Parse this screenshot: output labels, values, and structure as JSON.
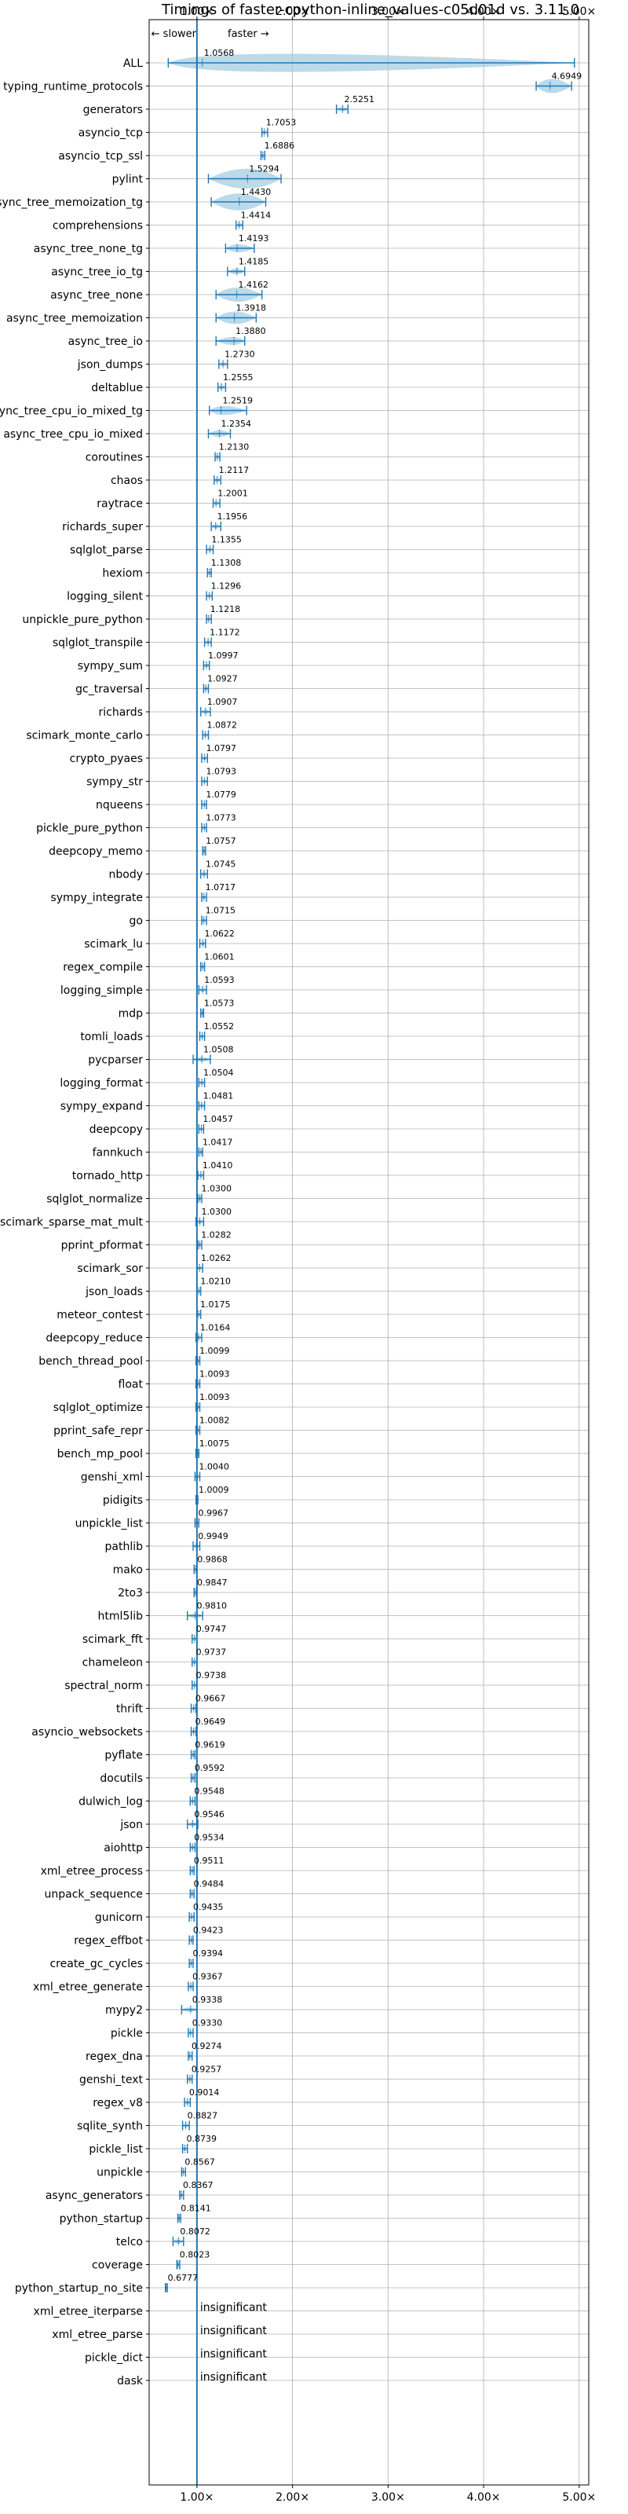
{
  "chart_data": {
    "type": "violin",
    "title": "Timings of faster-cpython-inline_values-c05d01d vs. 3.11.0",
    "direction_slower": "← slower",
    "direction_faster": "faster →",
    "xlim": [
      0.5,
      5.1
    ],
    "x_ticks": [
      1,
      2,
      3,
      4,
      5
    ],
    "x_tick_labels": [
      "1.00×",
      "2.00×",
      "3.00×",
      "4.00×",
      "5.00×"
    ],
    "reference_line": 1.0,
    "grid": true,
    "accent_color": "#1f77b4",
    "violin_color": "#9ecae1",
    "benchmarks": [
      {
        "name": "ALL",
        "value": 1.0568,
        "label": "1.0568",
        "min": 0.7,
        "max": 4.95,
        "w": 0.32
      },
      {
        "name": "typing_runtime_protocols",
        "value": 4.6949,
        "label": "4.6949",
        "min": 4.55,
        "max": 4.92,
        "w": 0.25
      },
      {
        "name": "generators",
        "value": 2.5251,
        "label": "2.5251",
        "min": 2.46,
        "max": 2.58,
        "w": 0.07
      },
      {
        "name": "asyncio_tcp",
        "value": 1.7053,
        "label": "1.7053",
        "min": 1.68,
        "max": 1.74,
        "w": 0.05
      },
      {
        "name": "asyncio_tcp_ssl",
        "value": 1.6886,
        "label": "1.6886",
        "min": 1.67,
        "max": 1.71,
        "w": 0.03
      },
      {
        "name": "pylint",
        "value": 1.5294,
        "label": "1.5294",
        "min": 1.12,
        "max": 1.88,
        "w": 0.35
      },
      {
        "name": "async_tree_memoization_tg",
        "value": 1.443,
        "label": "1.4430",
        "min": 1.15,
        "max": 1.72,
        "w": 0.3
      },
      {
        "name": "comprehensions",
        "value": 1.4414,
        "label": "1.4414",
        "min": 1.41,
        "max": 1.48,
        "w": 0.04
      },
      {
        "name": "async_tree_none_tg",
        "value": 1.4193,
        "label": "1.4193",
        "min": 1.3,
        "max": 1.6,
        "w": 0.14
      },
      {
        "name": "async_tree_io_tg",
        "value": 1.4185,
        "label": "1.4185",
        "min": 1.32,
        "max": 1.5,
        "w": 0.1
      },
      {
        "name": "async_tree_none",
        "value": 1.4162,
        "label": "1.4162",
        "min": 1.2,
        "max": 1.68,
        "w": 0.25
      },
      {
        "name": "async_tree_memoization",
        "value": 1.3918,
        "label": "1.3918",
        "min": 1.2,
        "max": 1.62,
        "w": 0.22
      },
      {
        "name": "async_tree_io",
        "value": 1.388,
        "label": "1.3880",
        "min": 1.2,
        "max": 1.5,
        "w": 0.14
      },
      {
        "name": "json_dumps",
        "value": 1.273,
        "label": "1.2730",
        "min": 1.23,
        "max": 1.32,
        "w": 0.05
      },
      {
        "name": "deltablue",
        "value": 1.2555,
        "label": "1.2555",
        "min": 1.22,
        "max": 1.3,
        "w": 0.05
      },
      {
        "name": "async_tree_cpu_io_mixed_tg",
        "value": 1.2519,
        "label": "1.2519",
        "min": 1.13,
        "max": 1.52,
        "w": 0.16
      },
      {
        "name": "async_tree_cpu_io_mixed",
        "value": 1.2354,
        "label": "1.2354",
        "min": 1.12,
        "max": 1.35,
        "w": 0.12
      },
      {
        "name": "coroutines",
        "value": 1.213,
        "label": "1.2130",
        "min": 1.19,
        "max": 1.24,
        "w": 0.04
      },
      {
        "name": "chaos",
        "value": 1.2117,
        "label": "1.2117",
        "min": 1.18,
        "max": 1.25,
        "w": 0.05
      },
      {
        "name": "raytrace",
        "value": 1.2001,
        "label": "1.2001",
        "min": 1.17,
        "max": 1.24,
        "w": 0.05
      },
      {
        "name": "richards_super",
        "value": 1.1956,
        "label": "1.1956",
        "min": 1.15,
        "max": 1.25,
        "w": 0.06
      },
      {
        "name": "sqlglot_parse",
        "value": 1.1355,
        "label": "1.1355",
        "min": 1.1,
        "max": 1.17,
        "w": 0.05
      },
      {
        "name": "hexiom",
        "value": 1.1308,
        "label": "1.1308",
        "min": 1.11,
        "max": 1.15,
        "w": 0.04
      },
      {
        "name": "logging_silent",
        "value": 1.1296,
        "label": "1.1296",
        "min": 1.1,
        "max": 1.16,
        "w": 0.04
      },
      {
        "name": "unpickle_pure_python",
        "value": 1.1218,
        "label": "1.1218",
        "min": 1.1,
        "max": 1.15,
        "w": 0.04
      },
      {
        "name": "sqlglot_transpile",
        "value": 1.1172,
        "label": "1.1172",
        "min": 1.08,
        "max": 1.15,
        "w": 0.05
      },
      {
        "name": "sympy_sum",
        "value": 1.0997,
        "label": "1.0997",
        "min": 1.07,
        "max": 1.13,
        "w": 0.05
      },
      {
        "name": "gc_traversal",
        "value": 1.0927,
        "label": "1.0927",
        "min": 1.07,
        "max": 1.12,
        "w": 0.04
      },
      {
        "name": "richards",
        "value": 1.0907,
        "label": "1.0907",
        "min": 1.04,
        "max": 1.14,
        "w": 0.06
      },
      {
        "name": "scimark_monte_carlo",
        "value": 1.0872,
        "label": "1.0872",
        "min": 1.06,
        "max": 1.12,
        "w": 0.04
      },
      {
        "name": "crypto_pyaes",
        "value": 1.0797,
        "label": "1.0797",
        "min": 1.05,
        "max": 1.11,
        "w": 0.04
      },
      {
        "name": "sympy_str",
        "value": 1.0793,
        "label": "1.0793",
        "min": 1.05,
        "max": 1.11,
        "w": 0.05
      },
      {
        "name": "nqueens",
        "value": 1.0779,
        "label": "1.0779",
        "min": 1.05,
        "max": 1.1,
        "w": 0.04
      },
      {
        "name": "pickle_pure_python",
        "value": 1.0773,
        "label": "1.0773",
        "min": 1.05,
        "max": 1.1,
        "w": 0.04
      },
      {
        "name": "deepcopy_memo",
        "value": 1.0757,
        "label": "1.0757",
        "min": 1.06,
        "max": 1.09,
        "w": 0.03
      },
      {
        "name": "nbody",
        "value": 1.0745,
        "label": "1.0745",
        "min": 1.04,
        "max": 1.11,
        "w": 0.05
      },
      {
        "name": "sympy_integrate",
        "value": 1.0717,
        "label": "1.0717",
        "min": 1.05,
        "max": 1.1,
        "w": 0.04
      },
      {
        "name": "go",
        "value": 1.0715,
        "label": "1.0715",
        "min": 1.05,
        "max": 1.1,
        "w": 0.04
      },
      {
        "name": "scimark_lu",
        "value": 1.0622,
        "label": "1.0622",
        "min": 1.03,
        "max": 1.09,
        "w": 0.04
      },
      {
        "name": "regex_compile",
        "value": 1.0601,
        "label": "1.0601",
        "min": 1.04,
        "max": 1.08,
        "w": 0.03
      },
      {
        "name": "logging_simple",
        "value": 1.0593,
        "label": "1.0593",
        "min": 1.02,
        "max": 1.1,
        "w": 0.05
      },
      {
        "name": "mdp",
        "value": 1.0573,
        "label": "1.0573",
        "min": 1.04,
        "max": 1.07,
        "w": 0.03
      },
      {
        "name": "tomli_loads",
        "value": 1.0552,
        "label": "1.0552",
        "min": 1.03,
        "max": 1.08,
        "w": 0.04
      },
      {
        "name": "pycparser",
        "value": 1.0508,
        "label": "1.0508",
        "min": 0.96,
        "max": 1.14,
        "w": 0.08
      },
      {
        "name": "logging_format",
        "value": 1.0504,
        "label": "1.0504",
        "min": 1.02,
        "max": 1.08,
        "w": 0.04
      },
      {
        "name": "sympy_expand",
        "value": 1.0481,
        "label": "1.0481",
        "min": 1.02,
        "max": 1.08,
        "w": 0.04
      },
      {
        "name": "deepcopy",
        "value": 1.0457,
        "label": "1.0457",
        "min": 1.02,
        "max": 1.07,
        "w": 0.03
      },
      {
        "name": "fannkuch",
        "value": 1.0417,
        "label": "1.0417",
        "min": 1.02,
        "max": 1.06,
        "w": 0.03
      },
      {
        "name": "tornado_http",
        "value": 1.041,
        "label": "1.0410",
        "min": 1.01,
        "max": 1.07,
        "w": 0.04
      },
      {
        "name": "sqlglot_normalize",
        "value": 1.03,
        "label": "1.0300",
        "min": 1.01,
        "max": 1.05,
        "w": 0.03
      },
      {
        "name": "scimark_sparse_mat_mult",
        "value": 1.03,
        "label": "1.0300",
        "min": 0.99,
        "max": 1.07,
        "w": 0.04
      },
      {
        "name": "pprint_pformat",
        "value": 1.0282,
        "label": "1.0282",
        "min": 1.01,
        "max": 1.05,
        "w": 0.03
      },
      {
        "name": "scimark_sor",
        "value": 1.0262,
        "label": "1.0262",
        "min": 1.0,
        "max": 1.06,
        "w": 0.04
      },
      {
        "name": "json_loads",
        "value": 1.021,
        "label": "1.0210",
        "min": 1.0,
        "max": 1.04,
        "w": 0.03
      },
      {
        "name": "meteor_contest",
        "value": 1.0175,
        "label": "1.0175",
        "min": 1.0,
        "max": 1.04,
        "w": 0.03
      },
      {
        "name": "deepcopy_reduce",
        "value": 1.0164,
        "label": "1.0164",
        "min": 0.99,
        "max": 1.05,
        "w": 0.04
      },
      {
        "name": "bench_thread_pool",
        "value": 1.0099,
        "label": "1.0099",
        "min": 0.99,
        "max": 1.03,
        "w": 0.03
      },
      {
        "name": "float",
        "value": 1.0093,
        "label": "1.0093",
        "min": 0.99,
        "max": 1.03,
        "w": 0.03
      },
      {
        "name": "sqlglot_optimize",
        "value": 1.0093,
        "label": "1.0093",
        "min": 0.99,
        "max": 1.03,
        "w": 0.03
      },
      {
        "name": "pprint_safe_repr",
        "value": 1.0082,
        "label": "1.0082",
        "min": 0.99,
        "max": 1.03,
        "w": 0.03
      },
      {
        "name": "bench_mp_pool",
        "value": 1.0075,
        "label": "1.0075",
        "min": 0.99,
        "max": 1.02,
        "w": 0.03
      },
      {
        "name": "genshi_xml",
        "value": 1.004,
        "label": "1.0040",
        "min": 0.98,
        "max": 1.03,
        "w": 0.03
      },
      {
        "name": "pidigits",
        "value": 1.0009,
        "label": "1.0009",
        "min": 0.99,
        "max": 1.01,
        "w": 0.02
      },
      {
        "name": "unpickle_list",
        "value": 0.9967,
        "label": "0.9967",
        "min": 0.98,
        "max": 1.02,
        "w": 0.03
      },
      {
        "name": "pathlib",
        "value": 0.9949,
        "label": "0.9949",
        "min": 0.96,
        "max": 1.03,
        "w": 0.04
      },
      {
        "name": "mako",
        "value": 0.9868,
        "label": "0.9868",
        "min": 0.97,
        "max": 1.0,
        "w": 0.02
      },
      {
        "name": "2to3",
        "value": 0.9847,
        "label": "0.9847",
        "min": 0.97,
        "max": 1.0,
        "w": 0.02
      },
      {
        "name": "html5lib",
        "value": 0.981,
        "label": "0.9810",
        "min": 0.9,
        "max": 1.06,
        "w": 0.07
      },
      {
        "name": "scimark_fft",
        "value": 0.9747,
        "label": "0.9747",
        "min": 0.95,
        "max": 1.0,
        "w": 0.03
      },
      {
        "name": "chameleon",
        "value": 0.9737,
        "label": "0.9737",
        "min": 0.95,
        "max": 1.0,
        "w": 0.03
      },
      {
        "name": "spectral_norm",
        "value": 0.9738,
        "label": "0.9738",
        "min": 0.95,
        "max": 1.0,
        "w": 0.03
      },
      {
        "name": "thrift",
        "value": 0.9667,
        "label": "0.9667",
        "min": 0.94,
        "max": 0.99,
        "w": 0.03
      },
      {
        "name": "asyncio_websockets",
        "value": 0.9649,
        "label": "0.9649",
        "min": 0.94,
        "max": 0.99,
        "w": 0.03
      },
      {
        "name": "pyflate",
        "value": 0.9619,
        "label": "0.9619",
        "min": 0.94,
        "max": 0.98,
        "w": 0.03
      },
      {
        "name": "docutils",
        "value": 0.9592,
        "label": "0.9592",
        "min": 0.94,
        "max": 0.98,
        "w": 0.03
      },
      {
        "name": "dulwich_log",
        "value": 0.9548,
        "label": "0.9548",
        "min": 0.93,
        "max": 0.98,
        "w": 0.03
      },
      {
        "name": "json",
        "value": 0.9546,
        "label": "0.9546",
        "min": 0.9,
        "max": 1.01,
        "w": 0.06
      },
      {
        "name": "aiohttp",
        "value": 0.9534,
        "label": "0.9534",
        "min": 0.93,
        "max": 0.98,
        "w": 0.03
      },
      {
        "name": "xml_etree_process",
        "value": 0.9511,
        "label": "0.9511",
        "min": 0.93,
        "max": 0.97,
        "w": 0.03
      },
      {
        "name": "unpack_sequence",
        "value": 0.9484,
        "label": "0.9484",
        "min": 0.93,
        "max": 0.97,
        "w": 0.03
      },
      {
        "name": "gunicorn",
        "value": 0.9435,
        "label": "0.9435",
        "min": 0.92,
        "max": 0.97,
        "w": 0.03
      },
      {
        "name": "regex_effbot",
        "value": 0.9423,
        "label": "0.9423",
        "min": 0.92,
        "max": 0.96,
        "w": 0.03
      },
      {
        "name": "create_gc_cycles",
        "value": 0.9394,
        "label": "0.9394",
        "min": 0.92,
        "max": 0.96,
        "w": 0.03
      },
      {
        "name": "xml_etree_generate",
        "value": 0.9367,
        "label": "0.9367",
        "min": 0.91,
        "max": 0.96,
        "w": 0.03
      },
      {
        "name": "mypy2",
        "value": 0.9338,
        "label": "0.9338",
        "min": 0.84,
        "max": 1.0,
        "w": 0.08
      },
      {
        "name": "pickle",
        "value": 0.933,
        "label": "0.9330",
        "min": 0.91,
        "max": 0.96,
        "w": 0.03
      },
      {
        "name": "regex_dna",
        "value": 0.9274,
        "label": "0.9274",
        "min": 0.91,
        "max": 0.95,
        "w": 0.02
      },
      {
        "name": "genshi_text",
        "value": 0.9257,
        "label": "0.9257",
        "min": 0.9,
        "max": 0.95,
        "w": 0.03
      },
      {
        "name": "regex_v8",
        "value": 0.9014,
        "label": "0.9014",
        "min": 0.87,
        "max": 0.93,
        "w": 0.03
      },
      {
        "name": "sqlite_synth",
        "value": 0.8827,
        "label": "0.8827",
        "min": 0.85,
        "max": 0.92,
        "w": 0.04
      },
      {
        "name": "pickle_list",
        "value": 0.8739,
        "label": "0.8739",
        "min": 0.85,
        "max": 0.9,
        "w": 0.03
      },
      {
        "name": "unpickle",
        "value": 0.8567,
        "label": "0.8567",
        "min": 0.84,
        "max": 0.88,
        "w": 0.02
      },
      {
        "name": "async_generators",
        "value": 0.8367,
        "label": "0.8367",
        "min": 0.82,
        "max": 0.86,
        "w": 0.03
      },
      {
        "name": "python_startup",
        "value": 0.8141,
        "label": "0.8141",
        "min": 0.8,
        "max": 0.83,
        "w": 0.02
      },
      {
        "name": "telco",
        "value": 0.8072,
        "label": "0.8072",
        "min": 0.75,
        "max": 0.86,
        "w": 0.05
      },
      {
        "name": "coverage",
        "value": 0.8023,
        "label": "0.8023",
        "min": 0.79,
        "max": 0.82,
        "w": 0.02
      },
      {
        "name": "python_startup_no_site",
        "value": 0.6777,
        "label": "0.6777",
        "min": 0.67,
        "max": 0.69,
        "w": 0.02
      },
      {
        "name": "xml_etree_iterparse",
        "value": null,
        "label": "insignificant"
      },
      {
        "name": "xml_etree_parse",
        "value": null,
        "label": "insignificant"
      },
      {
        "name": "pickle_dict",
        "value": null,
        "label": "insignificant"
      },
      {
        "name": "dask",
        "value": null,
        "label": "insignificant"
      }
    ]
  }
}
